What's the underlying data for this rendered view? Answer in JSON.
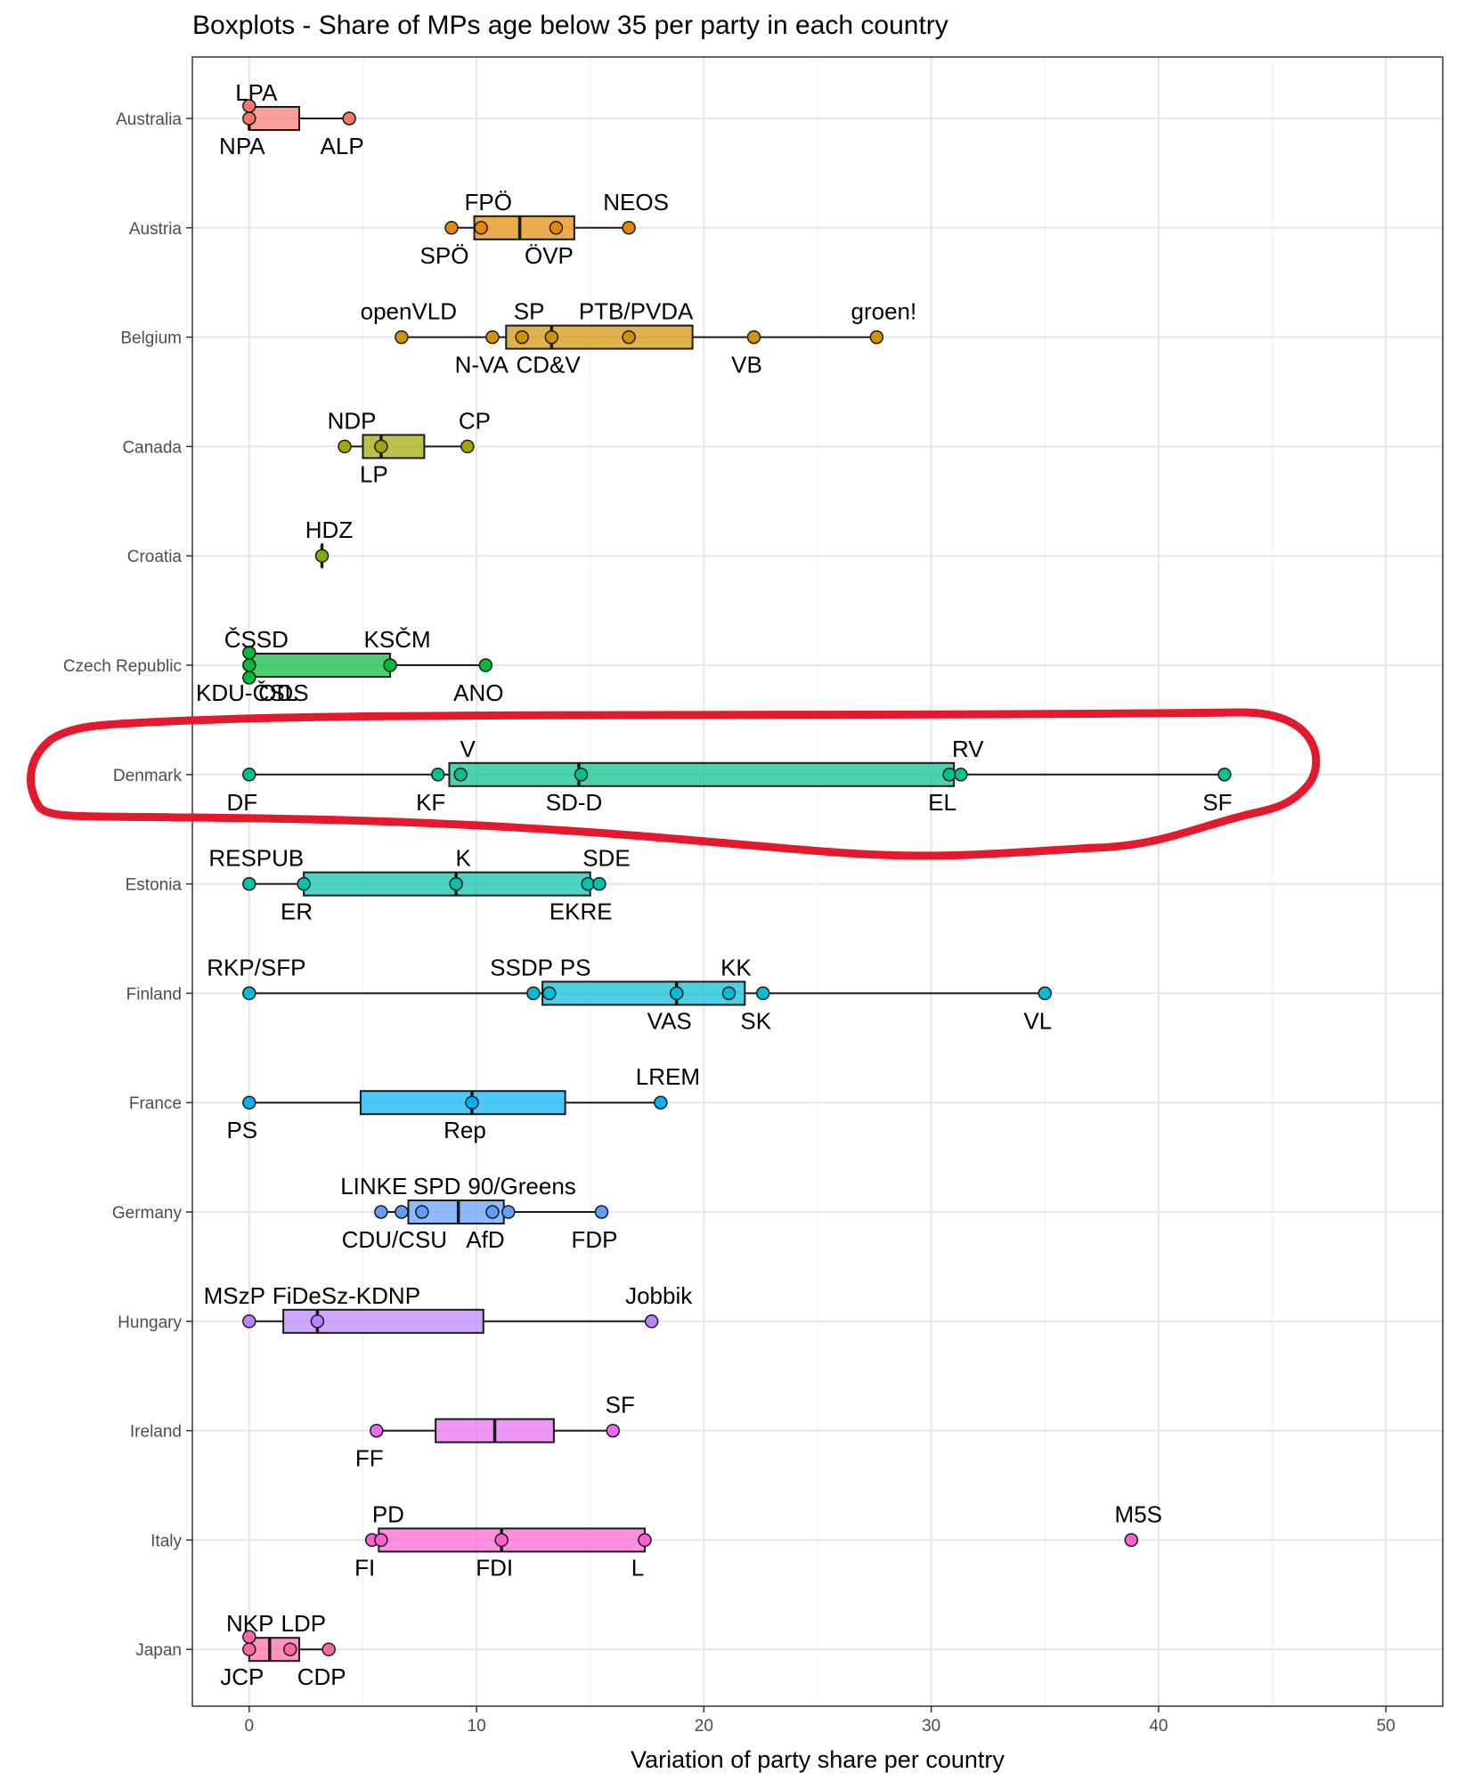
{
  "chart_data": {
    "type": "boxplot",
    "title": "Boxplots - Share of MPs age below 35 per party in each country",
    "xlabel": "Variation of party share per country",
    "ylabel": "",
    "xlim": [
      -2.5,
      52.5
    ],
    "xticks": [
      0,
      10,
      20,
      30,
      40,
      50
    ],
    "xtick_labels": [
      "0",
      "10",
      "20",
      "30",
      "40",
      "50"
    ],
    "grid": true,
    "annotation": {
      "type": "hand-drawn-ellipse",
      "color": "#e31a2d",
      "target": "Denmark"
    },
    "countries": [
      {
        "name": "Australia",
        "color": "#F8766D",
        "box": {
          "q1": 0,
          "median": 0,
          "q3": 2.2,
          "whisker_low": 0,
          "whisker_high": 4.4
        },
        "parties": [
          {
            "label": "LPA",
            "value": 0,
            "pos": "above"
          },
          {
            "label": "NPA",
            "value": 0,
            "pos": "below"
          },
          {
            "label": "ALP",
            "value": 4.4,
            "pos": "below"
          }
        ]
      },
      {
        "name": "Austria",
        "color": "#E38900",
        "box": {
          "q1": 9.9,
          "median": 11.9,
          "q3": 14.3,
          "whisker_low": 8.9,
          "whisker_high": 16.7
        },
        "parties": [
          {
            "label": "SPÖ",
            "value": 8.9,
            "pos": "below"
          },
          {
            "label": "FPÖ",
            "value": 10.2,
            "pos": "above"
          },
          {
            "label": "ÖVP",
            "value": 13.5,
            "pos": "below"
          },
          {
            "label": "NEOS",
            "value": 16.7,
            "pos": "above"
          }
        ]
      },
      {
        "name": "Belgium",
        "color": "#D39200",
        "box": {
          "q1": 11.3,
          "median": 13.3,
          "q3": 19.5,
          "whisker_low": 6.7,
          "whisker_high": 27.6
        },
        "parties": [
          {
            "label": "openVLD",
            "value": 6.7,
            "pos": "above"
          },
          {
            "label": "N-VA",
            "value": 10.7,
            "pos": "below"
          },
          {
            "label": "SP",
            "value": 12.0,
            "pos": "above"
          },
          {
            "label": "CD&V",
            "value": 13.3,
            "pos": "below"
          },
          {
            "label": "PTB/PVDA",
            "value": 16.7,
            "pos": "above"
          },
          {
            "label": "VB",
            "value": 22.2,
            "pos": "below"
          },
          {
            "label": "groen!",
            "value": 27.6,
            "pos": "above"
          }
        ]
      },
      {
        "name": "Canada",
        "color": "#A3A500",
        "box": {
          "q1": 5.0,
          "median": 5.8,
          "q3": 7.7,
          "whisker_low": 4.2,
          "whisker_high": 9.6
        },
        "parties": [
          {
            "label": "NDP",
            "value": 4.2,
            "pos": "above"
          },
          {
            "label": "LP",
            "value": 5.8,
            "pos": "below"
          },
          {
            "label": "CP",
            "value": 9.6,
            "pos": "above"
          }
        ]
      },
      {
        "name": "Croatia",
        "color": "#7CAE00",
        "box": {
          "q1": 3.2,
          "median": 3.2,
          "q3": 3.2,
          "whisker_low": 3.2,
          "whisker_high": 3.2
        },
        "parties": [
          {
            "label": "HDZ",
            "value": 3.2,
            "pos": "above"
          }
        ]
      },
      {
        "name": "Czech Republic",
        "color": "#00BA38",
        "box": {
          "q1": 0,
          "median": 0,
          "q3": 6.2,
          "whisker_low": 0,
          "whisker_high": 10.4
        },
        "parties": [
          {
            "label": "ČSSD",
            "value": 0,
            "pos": "above"
          },
          {
            "label": "ODS",
            "value": 0,
            "pos": "below"
          },
          {
            "label": "KDU-ČSL",
            "value": 0,
            "pos": "below"
          },
          {
            "label": "KSČM",
            "value": 6.2,
            "pos": "above"
          },
          {
            "label": "ANO",
            "value": 10.4,
            "pos": "below"
          }
        ]
      },
      {
        "name": "Denmark",
        "color": "#00C08B",
        "box": {
          "q1": 8.8,
          "median": 14.5,
          "q3": 31.0,
          "whisker_low": 0,
          "whisker_high": 42.9
        },
        "parties": [
          {
            "label": "DF",
            "value": 0,
            "pos": "below"
          },
          {
            "label": "KF",
            "value": 8.3,
            "pos": "below"
          },
          {
            "label": "V",
            "value": 9.3,
            "pos": "above"
          },
          {
            "label": "SD-D",
            "value": 14.6,
            "pos": "below"
          },
          {
            "label": "EL",
            "value": 30.8,
            "pos": "below"
          },
          {
            "label": "RV",
            "value": 31.3,
            "pos": "above"
          },
          {
            "label": "SF",
            "value": 42.9,
            "pos": "below"
          }
        ]
      },
      {
        "name": "Estonia",
        "color": "#00C1A9",
        "box": {
          "q1": 2.4,
          "median": 9.1,
          "q3": 15.0,
          "whisker_low": 0,
          "whisker_high": 15.4
        },
        "parties": [
          {
            "label": "RESPUB",
            "value": 0,
            "pos": "above"
          },
          {
            "label": "ER",
            "value": 2.4,
            "pos": "below"
          },
          {
            "label": "K",
            "value": 9.1,
            "pos": "above"
          },
          {
            "label": "EKRE",
            "value": 14.9,
            "pos": "below"
          },
          {
            "label": "SDE",
            "value": 15.4,
            "pos": "above"
          }
        ]
      },
      {
        "name": "Finland",
        "color": "#00BCD8",
        "box": {
          "q1": 12.9,
          "median": 18.8,
          "q3": 21.8,
          "whisker_low": 0,
          "whisker_high": 35.0
        },
        "parties": [
          {
            "label": "RKP/SFP",
            "value": 0,
            "pos": "above"
          },
          {
            "label": "SSDP",
            "value": 12.5,
            "pos": "above"
          },
          {
            "label": "PS",
            "value": 13.2,
            "pos": "above"
          },
          {
            "label": "VAS",
            "value": 18.8,
            "pos": "below"
          },
          {
            "label": "KK",
            "value": 21.1,
            "pos": "above"
          },
          {
            "label": "SK",
            "value": 22.6,
            "pos": "below"
          },
          {
            "label": "VL",
            "value": 35.0,
            "pos": "below"
          }
        ]
      },
      {
        "name": "France",
        "color": "#00B0F6",
        "box": {
          "q1": 4.9,
          "median": 9.8,
          "q3": 13.9,
          "whisker_low": 0,
          "whisker_high": 18.1
        },
        "parties": [
          {
            "label": "PS",
            "value": 0,
            "pos": "below"
          },
          {
            "label": "Rep",
            "value": 9.8,
            "pos": "below"
          },
          {
            "label": "LREM",
            "value": 18.1,
            "pos": "above"
          }
        ]
      },
      {
        "name": "Germany",
        "color": "#619CFF",
        "box": {
          "q1": 7.0,
          "median": 9.2,
          "q3": 11.2,
          "whisker_low": 5.8,
          "whisker_high": 15.5
        },
        "parties": [
          {
            "label": "LINKE",
            "value": 5.8,
            "pos": "above"
          },
          {
            "label": "CDU/CSU",
            "value": 6.7,
            "pos": "below"
          },
          {
            "label": "SPD",
            "value": 7.6,
            "pos": "above"
          },
          {
            "label": "AfD",
            "value": 10.7,
            "pos": "below"
          },
          {
            "label": "90/Greens",
            "value": 11.4,
            "pos": "above"
          },
          {
            "label": "FDP",
            "value": 15.5,
            "pos": "below"
          }
        ]
      },
      {
        "name": "Hungary",
        "color": "#B983FF",
        "box": {
          "q1": 1.5,
          "median": 3.0,
          "q3": 10.3,
          "whisker_low": 0,
          "whisker_high": 17.7
        },
        "parties": [
          {
            "label": "MSzP",
            "value": 0,
            "pos": "above"
          },
          {
            "label": "FiDeSz-KDNP",
            "value": 3.0,
            "pos": "above"
          },
          {
            "label": "Jobbik",
            "value": 17.7,
            "pos": "above"
          }
        ]
      },
      {
        "name": "Ireland",
        "color": "#E76BF3",
        "box": {
          "q1": 8.2,
          "median": 10.8,
          "q3": 13.4,
          "whisker_low": 5.6,
          "whisker_high": 16.0
        },
        "parties": [
          {
            "label": "FF",
            "value": 5.6,
            "pos": "below"
          },
          {
            "label": "SF",
            "value": 16.0,
            "pos": "above"
          }
        ]
      },
      {
        "name": "Italy",
        "color": "#FD61D1",
        "box": {
          "q1": 5.7,
          "median": 11.1,
          "q3": 17.4,
          "whisker_low": 5.4,
          "whisker_high": 17.4
        },
        "parties": [
          {
            "label": "FI",
            "value": 5.4,
            "pos": "below"
          },
          {
            "label": "PD",
            "value": 5.8,
            "pos": "above"
          },
          {
            "label": "FDI",
            "value": 11.1,
            "pos": "below"
          },
          {
            "label": "L",
            "value": 17.4,
            "pos": "below"
          },
          {
            "label": "M5S",
            "value": 38.8,
            "pos": "above"
          }
        ]
      },
      {
        "name": "Japan",
        "color": "#FF67A4",
        "box": {
          "q1": 0,
          "median": 0.9,
          "q3": 2.2,
          "whisker_low": 0,
          "whisker_high": 3.5
        },
        "parties": [
          {
            "label": "NKP",
            "value": 0,
            "pos": "above"
          },
          {
            "label": "JCP",
            "value": 0,
            "pos": "below"
          },
          {
            "label": "LDP",
            "value": 1.8,
            "pos": "above"
          },
          {
            "label": "CDP",
            "value": 3.5,
            "pos": "below"
          }
        ]
      }
    ]
  }
}
